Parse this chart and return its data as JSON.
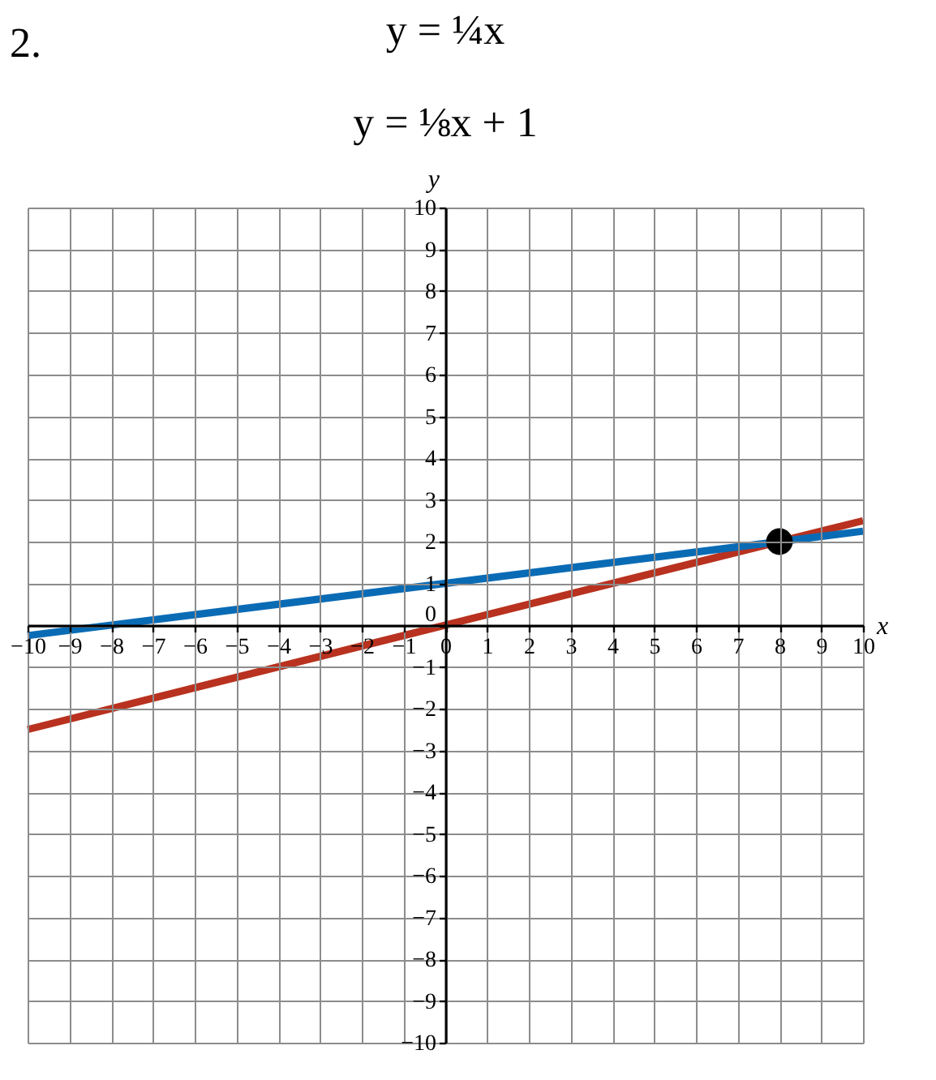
{
  "chart_data": {
    "type": "line",
    "title": "2.",
    "annotations": [
      "y = ¼x",
      "y = ⅛x + 1"
    ],
    "xlabel": "x",
    "ylabel": "y",
    "x": [
      -10,
      10
    ],
    "series": [
      {
        "color": "#b8321f",
        "values": [
          -2.5,
          2.5
        ]
      },
      {
        "color": "#0a6bb5",
        "values": [
          -0.25,
          2.25
        ]
      },
      {
        "type": "scatter",
        "marker": "circle",
        "color": "#000000",
        "x": [
          8
        ],
        "values": [
          2
        ]
      }
    ],
    "xlim": [
      -10,
      10
    ],
    "ylim": [
      -10,
      10
    ],
    "xticks": [
      -10,
      -9,
      -8,
      -7,
      -6,
      -5,
      -4,
      -3,
      -2,
      -1,
      0,
      1,
      2,
      3,
      4,
      5,
      6,
      7,
      8,
      9,
      10
    ],
    "yticks": [
      -10,
      -9,
      -8,
      -7,
      -6,
      -5,
      -4,
      -3,
      -2,
      -1,
      0,
      1,
      2,
      3,
      4,
      5,
      6,
      7,
      8,
      9,
      10
    ],
    "grid": true,
    "line_style": "solid"
  }
}
